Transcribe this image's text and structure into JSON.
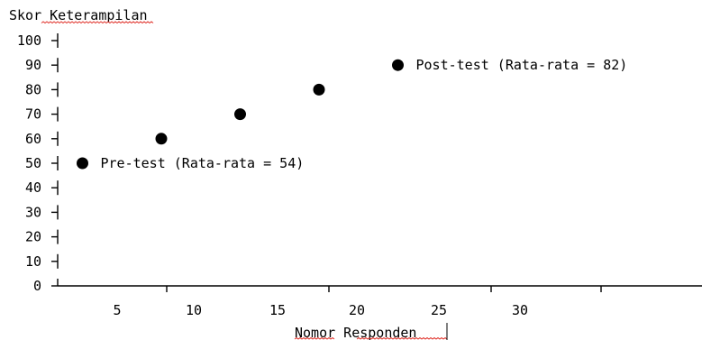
{
  "chart_data": {
    "type": "scatter",
    "ylabel": "Skor Keterampilan",
    "xlabel": "Nomor Responden",
    "ylim": [
      0,
      100
    ],
    "y_ticks": [
      100,
      90,
      80,
      70,
      60,
      50,
      40,
      30,
      20,
      10,
      0
    ],
    "x_tick_labels": [
      "5",
      "10",
      "15",
      "20",
      "25",
      "30"
    ],
    "points": [
      {
        "x": 3,
        "y": 50
      },
      {
        "x": 8,
        "y": 60
      },
      {
        "x": 13,
        "y": 70
      },
      {
        "x": 18,
        "y": 80
      },
      {
        "x": 23,
        "y": 90
      }
    ],
    "annotations": [
      {
        "text": "Pre-test (Rata-rata = 54)",
        "x": 3,
        "y": 50
      },
      {
        "text": "Post-test (Rata-rata = 82)",
        "x": 23,
        "y": 90
      }
    ],
    "grid": false,
    "marker_color": "#000000"
  }
}
